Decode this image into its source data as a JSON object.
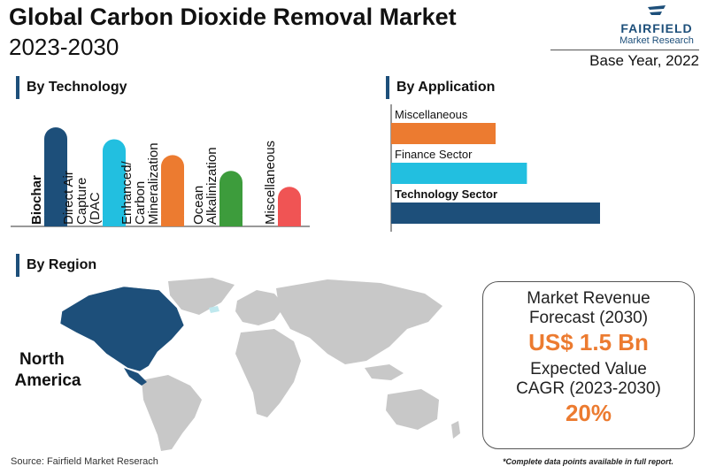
{
  "header": {
    "title_line1": "Global Carbon Dioxide Removal Market",
    "title_line2": "2023-2030",
    "logo_brand": "FAIRFIELD",
    "logo_sub": "Market Research",
    "base_year": "Base Year, 2022"
  },
  "sections": {
    "technology": "By Technology",
    "application": "By Application",
    "region": "By Region"
  },
  "chart_data": [
    {
      "type": "bar",
      "orientation": "vertical",
      "title": "By Technology",
      "categories": [
        "Biochar",
        "Direct Air Capture (DAC",
        "Enhanced/ Carbon Mineralization",
        "Ocean Alkalinization",
        "Miscellaneous"
      ],
      "values": [
        5,
        4.4,
        3.6,
        2.8,
        2.0
      ],
      "colors": [
        "#1d4f7a",
        "#22bfe0",
        "#ec7b30",
        "#3d9c3c",
        "#f05454"
      ],
      "highlight": "Biochar"
    },
    {
      "type": "bar",
      "orientation": "horizontal",
      "title": "By Application",
      "categories": [
        "Miscellaneous",
        "Finance Sector",
        "Technology Sector"
      ],
      "values": [
        2.0,
        2.6,
        4.0
      ],
      "colors": [
        "#ec7b30",
        "#22bfe0",
        "#1d4f7a"
      ],
      "highlight": "Technology Sector"
    }
  ],
  "region": {
    "highlight_label": "North America",
    "highlight_color": "#1d4f7a",
    "other_color": "#c8c8c8"
  },
  "kpi": {
    "revenue_label": "Market Revenue Forecast (2030)",
    "revenue_value": "US$ 1.5 Bn",
    "cagr_label": "Expected Value CAGR (2023-2030)",
    "cagr_value": "20%"
  },
  "footer": {
    "source": "Source: Fairfield Market Reserach",
    "note": "*Complete data points available in full report."
  }
}
